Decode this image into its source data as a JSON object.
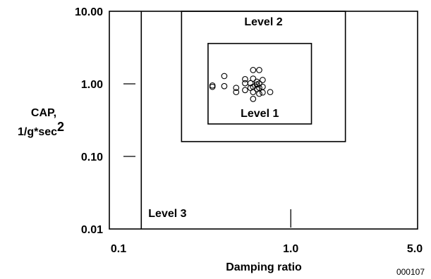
{
  "chart_data": {
    "type": "scatter",
    "title": "",
    "xlabel": "Damping ratio",
    "ylabel_line1": "CAP,",
    "ylabel_line2": "1/g*sec",
    "ylabel_sup": "2",
    "x_scale": "log",
    "y_scale": "log",
    "xlim": [
      0.1,
      5.0
    ],
    "ylim": [
      0.01,
      10.0
    ],
    "x_ticks": [
      {
        "value": 0.1,
        "label": "0.1"
      },
      {
        "value": 1.0,
        "label": "1.0"
      },
      {
        "value": 5.0,
        "label": "5.0"
      }
    ],
    "y_ticks": [
      {
        "value": 0.01,
        "label": "0.01"
      },
      {
        "value": 0.1,
        "label": "0.10"
      },
      {
        "value": 1.0,
        "label": "1.00"
      },
      {
        "value": 10.0,
        "label": "10.00"
      }
    ],
    "grid": false,
    "regions": [
      {
        "label": "Level 1",
        "zeta_min": 0.35,
        "zeta_max": 1.3,
        "cap_min": 0.28,
        "cap_max": 3.6
      },
      {
        "label": "Level 2",
        "zeta_min": 0.25,
        "zeta_max": 2.0,
        "cap_min": 0.16,
        "cap_max": 10.0
      },
      {
        "label": "Level 3",
        "zeta_min": 0.15,
        "zeta_max": 5.0,
        "cap_min": 0.01,
        "cap_max": 10.0
      }
    ],
    "points": [
      {
        "x": 0.37,
        "y": 0.95
      },
      {
        "x": 0.37,
        "y": 0.91
      },
      {
        "x": 0.43,
        "y": 1.28
      },
      {
        "x": 0.43,
        "y": 0.93
      },
      {
        "x": 0.5,
        "y": 0.88
      },
      {
        "x": 0.5,
        "y": 0.77
      },
      {
        "x": 0.56,
        "y": 1.16
      },
      {
        "x": 0.56,
        "y": 1.02
      },
      {
        "x": 0.56,
        "y": 0.82
      },
      {
        "x": 0.6,
        "y": 1.02
      },
      {
        "x": 0.6,
        "y": 0.88
      },
      {
        "x": 0.62,
        "y": 1.55
      },
      {
        "x": 0.62,
        "y": 1.18
      },
      {
        "x": 0.62,
        "y": 0.91
      },
      {
        "x": 0.62,
        "y": 0.77
      },
      {
        "x": 0.62,
        "y": 0.62
      },
      {
        "x": 0.65,
        "y": 1.07
      },
      {
        "x": 0.65,
        "y": 0.98
      },
      {
        "x": 0.65,
        "y": 0.85
      },
      {
        "x": 0.67,
        "y": 1.55
      },
      {
        "x": 0.67,
        "y": 1.01
      },
      {
        "x": 0.67,
        "y": 0.88
      },
      {
        "x": 0.67,
        "y": 0.73
      },
      {
        "x": 0.7,
        "y": 1.13
      },
      {
        "x": 0.7,
        "y": 0.91
      },
      {
        "x": 0.7,
        "y": 0.76
      },
      {
        "x": 0.77,
        "y": 0.77
      }
    ]
  },
  "figure_id": "000107"
}
